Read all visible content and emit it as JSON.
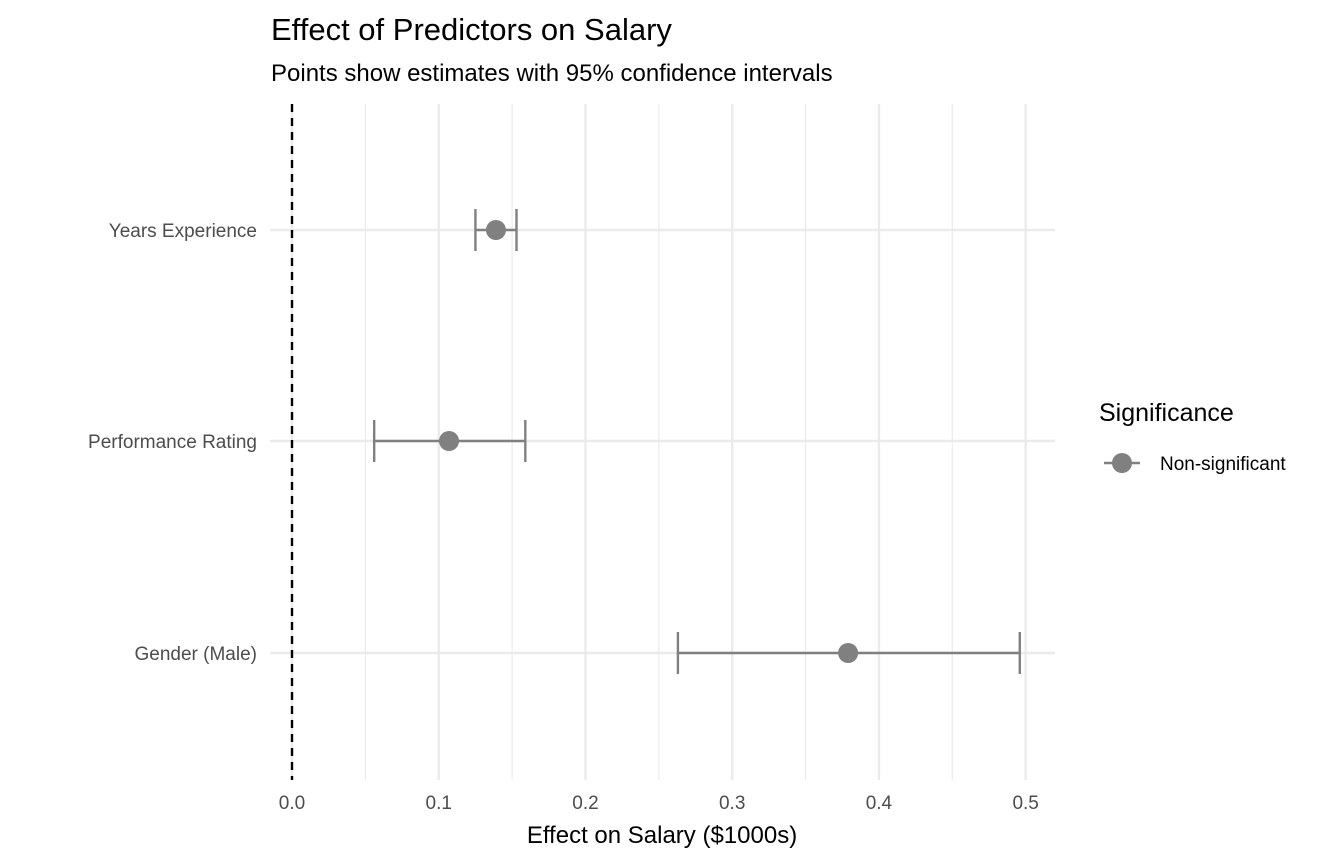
{
  "chart_data": {
    "type": "scatter",
    "subtype": "coefficient plot with error bars",
    "title": "Effect of Predictors on Salary",
    "subtitle": "Points show estimates with 95% confidence intervals",
    "xlabel": "Effect on Salary ($1000s)",
    "ylabel": "",
    "xlim": [
      -0.015,
      0.52
    ],
    "x_ticks": [
      0.0,
      0.1,
      0.2,
      0.3,
      0.4,
      0.5
    ],
    "x_tick_labels": [
      "0.0",
      "0.1",
      "0.2",
      "0.3",
      "0.4",
      "0.5"
    ],
    "reference_line": {
      "x": 0,
      "style": "dashed",
      "color": "#000000"
    },
    "grid": true,
    "categories": [
      "Years Experience",
      "Performance Rating",
      "Gender (Male)"
    ],
    "estimates": [
      0.139,
      0.107,
      0.379
    ],
    "ci_low": [
      0.125,
      0.056,
      0.263
    ],
    "ci_high": [
      0.153,
      0.159,
      0.496
    ],
    "significance": [
      "Non-significant",
      "Non-significant",
      "Non-significant"
    ],
    "legend": {
      "title": "Significance",
      "position": "right",
      "entries": [
        {
          "label": "Non-significant",
          "color": "#808080"
        }
      ]
    },
    "colors": {
      "point": "#808080",
      "grid": "#ebebeb",
      "tick_text": "#4d4d4d"
    }
  }
}
